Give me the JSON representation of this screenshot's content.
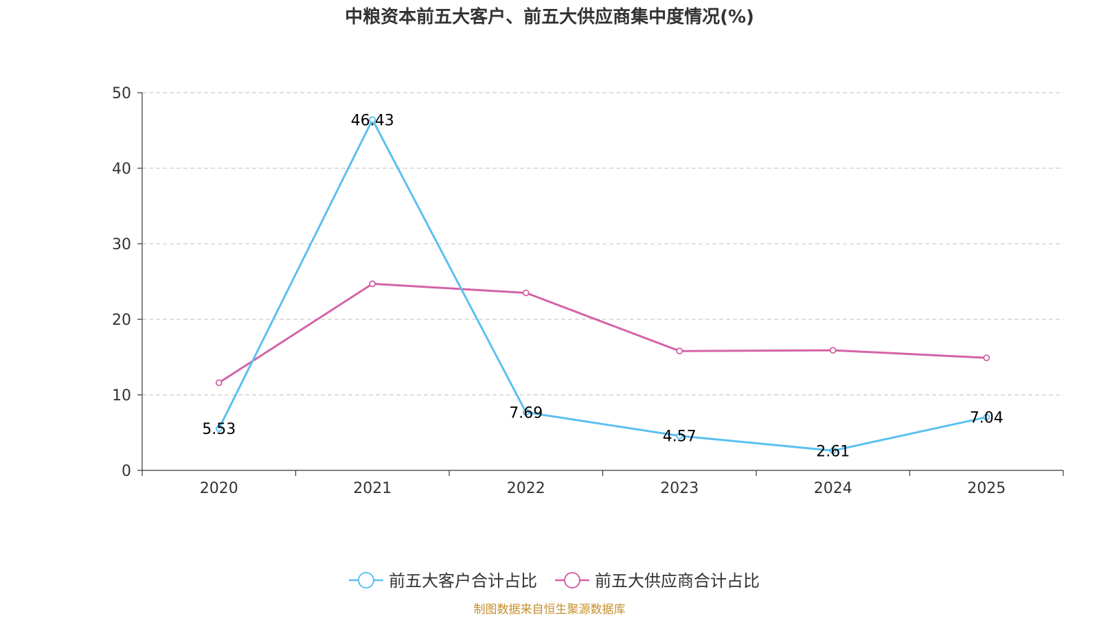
{
  "chart_data": {
    "type": "line",
    "title": "中粮资本前五大客户、前五大供应商集中度情况(%)",
    "categories": [
      "2020",
      "2021",
      "2022",
      "2023",
      "2024",
      "2025"
    ],
    "ylim": [
      0,
      50
    ],
    "yticks": [
      0,
      10,
      20,
      30,
      40,
      50
    ],
    "grid": true,
    "legend_position": "bottom-center",
    "series": [
      {
        "name": "前五大客户合计占比",
        "color": "#5bc0f0",
        "values": [
          5.53,
          46.43,
          7.69,
          4.57,
          2.61,
          7.04
        ],
        "labels": [
          "5.53",
          "46.43",
          "7.69",
          "4.57",
          "2.61",
          "7.04"
        ],
        "show_labels": true
      },
      {
        "name": "前五大供应商合计占比",
        "color": "#d462a8",
        "values": [
          11.6,
          24.7,
          23.5,
          15.8,
          15.9,
          14.9
        ],
        "show_labels": false
      }
    ],
    "source": "制图数据来自恒生聚源数据库"
  }
}
